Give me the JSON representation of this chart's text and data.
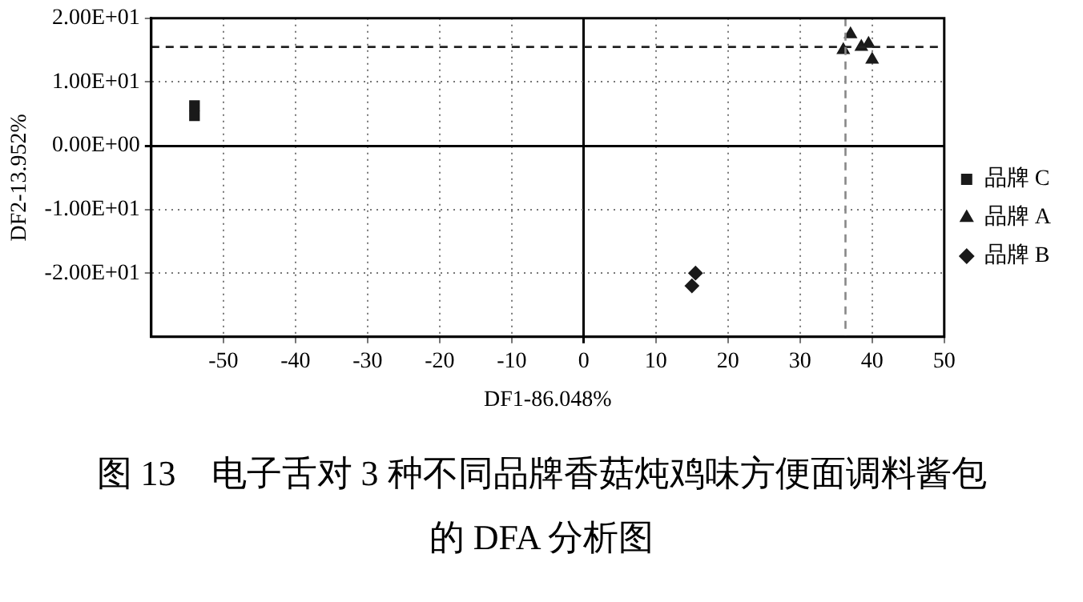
{
  "chart_data": {
    "type": "scatter",
    "title": "图 13　电子舌对 3 种不同品牌香菇炖鸡味方便面调料酱包的 DFA 分析图",
    "xlabel": "DF1-86.048%",
    "ylabel": "DF2-13.952%",
    "xlim": [
      -60,
      50
    ],
    "xticks": [
      -50,
      -40,
      -30,
      -20,
      -10,
      0,
      10,
      20,
      30,
      40,
      50
    ],
    "ylim": [
      -30,
      20
    ],
    "yticks": [
      {
        "value": 20,
        "label": "2.00E+01"
      },
      {
        "value": 10,
        "label": "1.00E+01"
      },
      {
        "value": 0,
        "label": "0.00E+00"
      },
      {
        "value": -10,
        "label": "-1.00E+01"
      },
      {
        "value": -20,
        "label": "-2.00E+01"
      }
    ],
    "grid": true,
    "legend": "right",
    "ref_lines": [
      {
        "axis": "y",
        "value": 15.5,
        "label": null,
        "color": "#222222",
        "line_style": "dashed"
      },
      {
        "axis": "x",
        "value": 36.3,
        "label": null,
        "color": "#888888",
        "line_style": "dashed"
      }
    ],
    "series": [
      {
        "name": "品牌 C",
        "color": "#1a1a1a",
        "marker": "square",
        "x": [
          -54,
          -54
        ],
        "values": [
          6.3,
          4.7
        ]
      },
      {
        "name": "品牌 A",
        "color": "#1a1a1a",
        "marker": "triangle",
        "x": [
          37,
          36,
          38.5,
          40,
          39.5
        ],
        "values": [
          17.5,
          15,
          15.5,
          13.5,
          16
        ]
      },
      {
        "name": "品牌 B",
        "color": "#1a1a1a",
        "marker": "diamond",
        "x": [
          15.5,
          15
        ],
        "values": [
          -20,
          -22
        ]
      }
    ]
  }
}
